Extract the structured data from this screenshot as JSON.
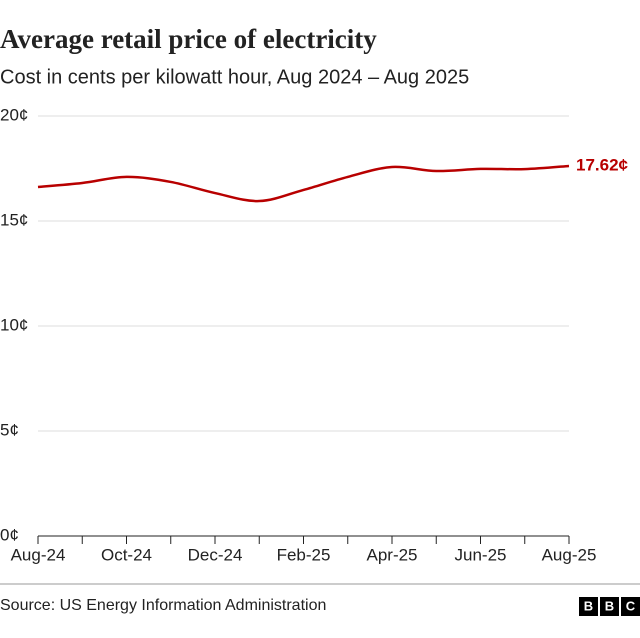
{
  "chart_data": {
    "type": "line",
    "title": "Average retail price of electricity",
    "subtitle": "Cost in cents per kilowatt hour, Aug 2024 – Aug 2025",
    "categories": [
      "Aug-24",
      null,
      "Oct-24",
      null,
      "Dec-24",
      null,
      "Feb-25",
      null,
      "Apr-25",
      null,
      "Jun-25",
      null,
      "Aug-25"
    ],
    "series": [
      {
        "name": "Average retail price",
        "color": "#b80000",
        "values": [
          16.62,
          16.81,
          17.1,
          16.86,
          16.33,
          15.95,
          16.48,
          17.1,
          17.57,
          17.38,
          17.48,
          17.47,
          17.62
        ],
        "value_labels": [
          null,
          null,
          null,
          null,
          null,
          null,
          null,
          null,
          null,
          null,
          null,
          null,
          "17.62¢"
        ]
      }
    ],
    "ylim": [
      0,
      20
    ],
    "yticks": [
      {
        "value": 0,
        "label": "0¢"
      },
      {
        "value": 5,
        "label": "5¢"
      },
      {
        "value": 10,
        "label": "10¢"
      },
      {
        "value": 15,
        "label": "15¢"
      },
      {
        "value": 20,
        "label": "20¢"
      }
    ],
    "grid": true,
    "source": "Source: US Energy Information Administration",
    "logo": [
      "B",
      "B",
      "C"
    ]
  }
}
